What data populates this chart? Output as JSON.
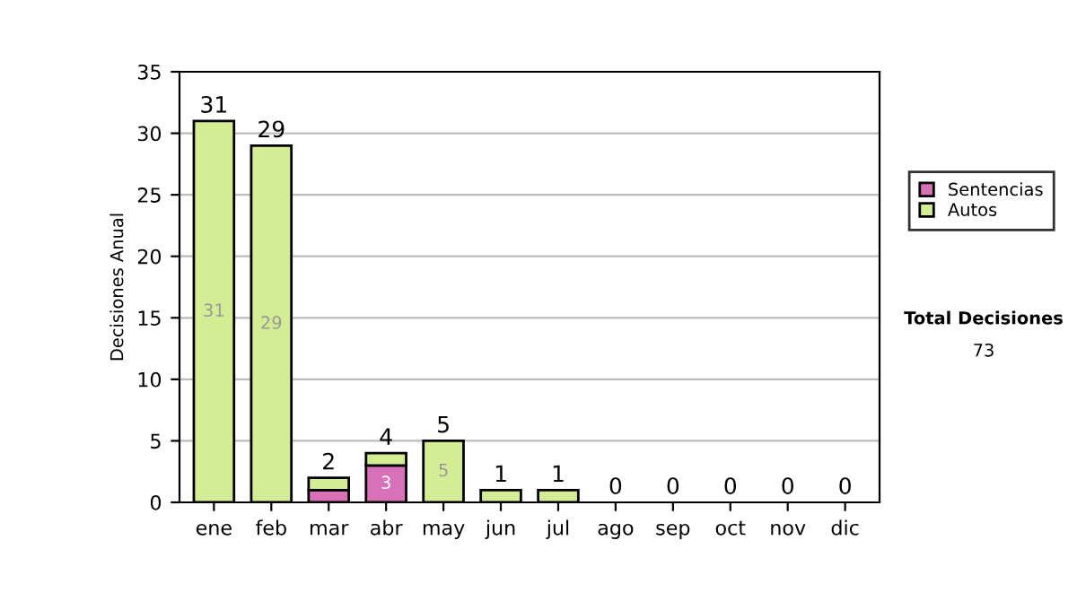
{
  "chart_data": {
    "type": "bar",
    "stacked": true,
    "ylabel": "Decisiones Anual",
    "categories": [
      "ene",
      "feb",
      "mar",
      "abr",
      "may",
      "jun",
      "jul",
      "ago",
      "sep",
      "oct",
      "nov",
      "dic"
    ],
    "series": [
      {
        "name": "Sentencias",
        "color": "#d872b8",
        "values": [
          0,
          0,
          1,
          3,
          0,
          0,
          0,
          0,
          0,
          0,
          0,
          0
        ],
        "value_labels": [
          null,
          null,
          null,
          "3",
          null,
          null,
          null,
          null,
          null,
          null,
          null,
          null
        ]
      },
      {
        "name": "Autos",
        "color": "#d4ec94",
        "values": [
          31,
          29,
          1,
          1,
          5,
          1,
          1,
          0,
          0,
          0,
          0,
          0
        ],
        "value_labels": [
          "31",
          "29",
          null,
          null,
          "5",
          null,
          null,
          null,
          null,
          null,
          null,
          null
        ]
      }
    ],
    "totals": [
      "31",
      "29",
      "2",
      "4",
      "5",
      "1",
      "1",
      "0",
      "0",
      "0",
      "0",
      "0"
    ],
    "ylim": [
      0,
      35
    ],
    "yticks": [
      0,
      5,
      10,
      15,
      20,
      25,
      30,
      35
    ],
    "grid": "y",
    "legend": "right",
    "annotations": [
      "Total Decisiones",
      "73"
    ]
  }
}
